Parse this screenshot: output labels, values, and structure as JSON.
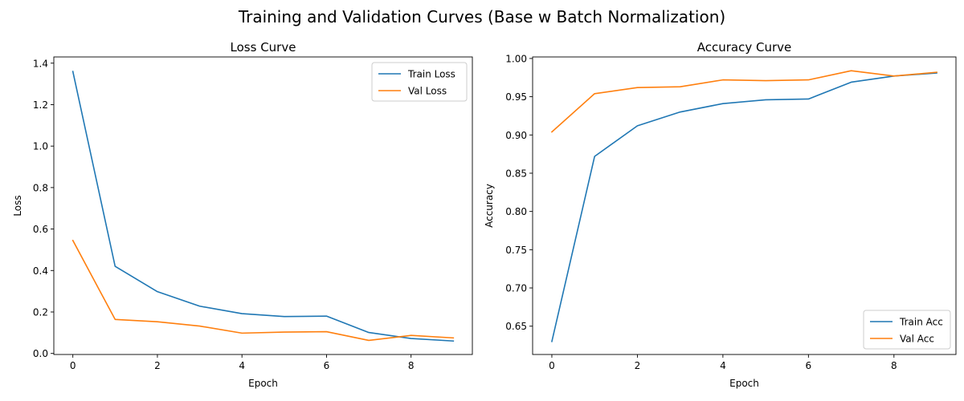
{
  "figure": {
    "suptitle": "Training and Validation Curves (Base w Batch Normalization)"
  },
  "chart_data": [
    {
      "type": "line",
      "title": "Loss Curve",
      "xlabel": "Epoch",
      "ylabel": "Loss",
      "x": [
        0,
        1,
        2,
        3,
        4,
        5,
        6,
        7,
        8,
        9
      ],
      "xlim": [
        -0.45,
        9.45
      ],
      "ylim": [
        -0.005,
        1.43
      ],
      "xticks": [
        0,
        2,
        4,
        6,
        8
      ],
      "yticks": [
        0.0,
        0.2,
        0.4,
        0.6,
        0.8,
        1.0,
        1.2,
        1.4
      ],
      "ytick_labels": [
        "0.0",
        "0.2",
        "0.4",
        "0.6",
        "0.8",
        "1.0",
        "1.2",
        "1.4"
      ],
      "grid": false,
      "legend_position": "top-right",
      "series": [
        {
          "name": "Train Loss",
          "color": "#1f77b4",
          "values": [
            1.36,
            0.42,
            0.298,
            0.228,
            0.192,
            0.178,
            0.18,
            0.101,
            0.072,
            0.06
          ]
        },
        {
          "name": "Val Loss",
          "color": "#ff7f0e",
          "values": [
            0.545,
            0.164,
            0.153,
            0.132,
            0.098,
            0.103,
            0.105,
            0.063,
            0.087,
            0.075
          ]
        }
      ]
    },
    {
      "type": "line",
      "title": "Accuracy Curve",
      "xlabel": "Epoch",
      "ylabel": "Accuracy",
      "x": [
        0,
        1,
        2,
        3,
        4,
        5,
        6,
        7,
        8,
        9
      ],
      "xlim": [
        -0.45,
        9.45
      ],
      "ylim": [
        0.613,
        1.002
      ],
      "xticks": [
        0,
        2,
        4,
        6,
        8
      ],
      "yticks": [
        0.65,
        0.7,
        0.75,
        0.8,
        0.85,
        0.9,
        0.95,
        1.0
      ],
      "ytick_labels": [
        "0.65",
        "0.70",
        "0.75",
        "0.80",
        "0.85",
        "0.90",
        "0.95",
        "1.00"
      ],
      "grid": false,
      "legend_position": "bottom-right",
      "series": [
        {
          "name": "Train Acc",
          "color": "#1f77b4",
          "values": [
            0.63,
            0.872,
            0.912,
            0.93,
            0.941,
            0.946,
            0.947,
            0.969,
            0.977,
            0.981
          ]
        },
        {
          "name": "Val Acc",
          "color": "#ff7f0e",
          "values": [
            0.904,
            0.954,
            0.962,
            0.963,
            0.972,
            0.971,
            0.972,
            0.984,
            0.977,
            0.982
          ]
        }
      ]
    }
  ]
}
